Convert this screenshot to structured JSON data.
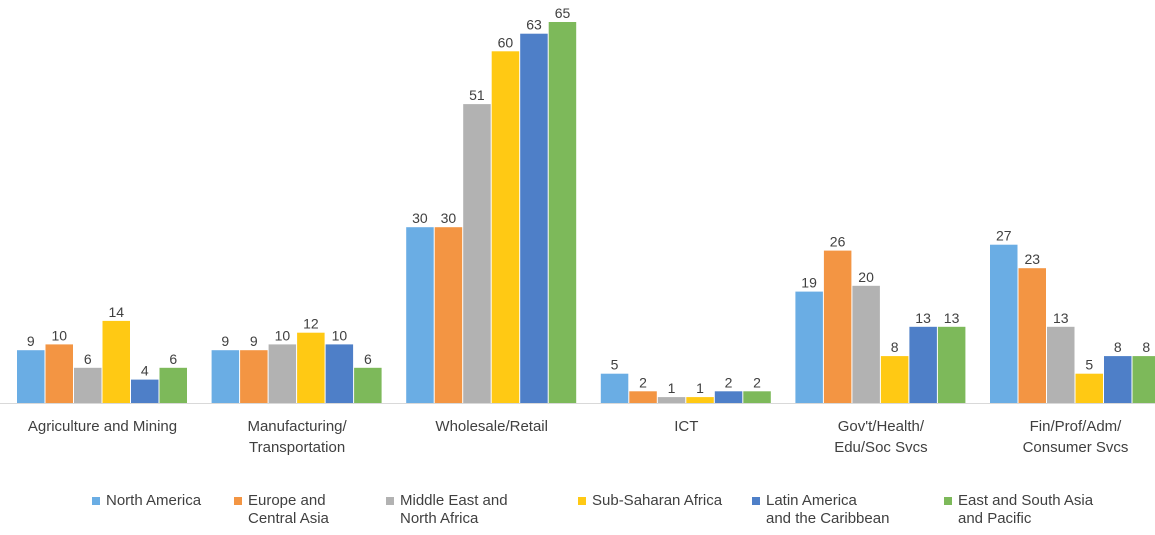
{
  "chart_data": {
    "type": "bar",
    "title": "",
    "xlabel": "",
    "ylabel": "",
    "ylim": [
      0,
      66
    ],
    "grid": false,
    "legend_position": "bottom",
    "categories": [
      "Agriculture and Mining",
      "Manufacturing/\nTransportation",
      "Wholesale/Retail",
      "ICT",
      "Gov't/Health/\nEdu/Soc Svcs",
      "Fin/Prof/Adm/\nConsumer Svcs"
    ],
    "series": [
      {
        "name": "North America",
        "legend_label": "North America",
        "color": "#6aade4",
        "values": [
          9,
          9,
          30,
          5,
          19,
          27
        ]
      },
      {
        "name": "Europe and Central Asia",
        "legend_label": "Europe and\nCentral Asia",
        "color": "#f39543",
        "values": [
          10,
          9,
          30,
          2,
          26,
          23
        ]
      },
      {
        "name": "Middle East and North Africa",
        "legend_label": "Middle East and\nNorth Africa",
        "color": "#b2b2b2",
        "values": [
          6,
          10,
          51,
          1,
          20,
          13
        ]
      },
      {
        "name": "Sub-Saharan Africa",
        "legend_label": "Sub-Saharan Africa",
        "color": "#ffc914",
        "values": [
          14,
          12,
          60,
          1,
          8,
          5
        ]
      },
      {
        "name": "Latin America and the Caribbean",
        "legend_label": "Latin America\nand the Caribbean",
        "color": "#4e7fc8",
        "values": [
          4,
          10,
          63,
          2,
          13,
          8
        ]
      },
      {
        "name": "East and South Asia and Pacific",
        "legend_label": "East and South Asia\nand Pacific",
        "color": "#7db95a",
        "values": [
          6,
          6,
          65,
          2,
          13,
          8
        ]
      }
    ]
  }
}
